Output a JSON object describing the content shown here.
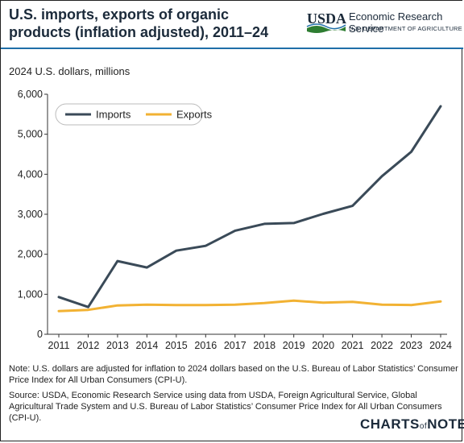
{
  "header": {
    "title": "U.S. imports, exports of organic products (inflation adjusted), 2011–24",
    "agency_logo_text": "USDA",
    "agency_name": "Economic Research Service",
    "agency_dept": "U.S. DEPARTMENT OF AGRICULTURE"
  },
  "chart_data": {
    "type": "line",
    "title": "U.S. imports, exports of organic products (inflation adjusted), 2011–24",
    "ylabel": "2024 U.S. dollars, millions",
    "xlabel": "",
    "x": [
      2011,
      2012,
      2013,
      2014,
      2015,
      2016,
      2017,
      2018,
      2019,
      2020,
      2021,
      2022,
      2023,
      2024
    ],
    "ylim": [
      0,
      6000
    ],
    "yticks": [
      0,
      1000,
      2000,
      3000,
      4000,
      5000,
      6000
    ],
    "ytick_labels": [
      "0",
      "1,000",
      "2,000",
      "3,000",
      "4,000",
      "5,000",
      "6,000"
    ],
    "grid": false,
    "legend_position": "top-left",
    "series": [
      {
        "name": "Imports",
        "color": "#3a4a58",
        "values": [
          930,
          680,
          1830,
          1670,
          2090,
          2210,
          2590,
          2760,
          2780,
          3010,
          3210,
          3950,
          4560,
          5700
        ]
      },
      {
        "name": "Exports",
        "color": "#f2b233",
        "values": [
          580,
          610,
          720,
          740,
          730,
          730,
          740,
          780,
          840,
          790,
          810,
          740,
          730,
          820
        ]
      }
    ]
  },
  "notes": {
    "note": "Note: U.S. dollars are adjusted for inflation to 2024 dollars based on the U.S. Bureau of Labor Statistics’ Consumer Price Index for All Urban Consumers (CPI-U).",
    "source": "Source: USDA, Economic Research Service using data from USDA, Foreign Agricultural Service, Global Agricultural Trade System and U.S. Bureau of Labor Statistics’ Consumer Price Index for All Urban Consumers (CPI-U)."
  },
  "footer": {
    "logo_main_1": "CHARTS",
    "logo_of": "of",
    "logo_main_2": "NOTE"
  }
}
